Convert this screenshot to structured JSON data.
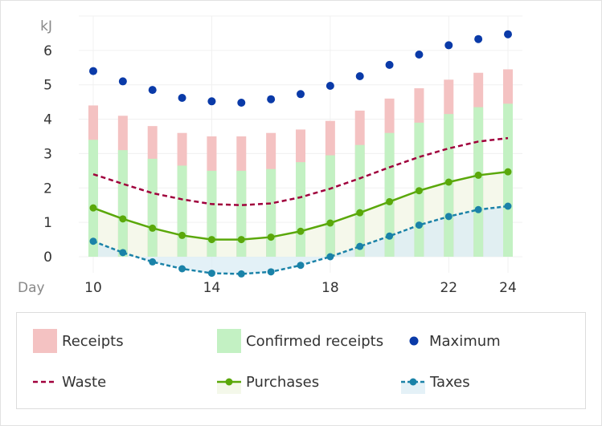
{
  "chart_data": {
    "type": "bar+line",
    "y_unit_label": "kJ",
    "x_axis_label": "Day",
    "x": [
      10,
      11,
      12,
      13,
      14,
      15,
      16,
      17,
      18,
      19,
      20,
      21,
      22,
      23,
      24
    ],
    "x_ticks": [
      10,
      14,
      18,
      22,
      24
    ],
    "y_ticks": [
      0,
      1,
      2,
      3,
      4,
      5,
      6
    ],
    "ylim": [
      -0.7,
      7.0
    ],
    "series": [
      {
        "name": "Receipts",
        "type": "bar",
        "color": "#f4c2c2",
        "values": [
          4.4,
          4.1,
          3.8,
          3.6,
          3.5,
          3.5,
          3.6,
          3.7,
          3.95,
          4.25,
          4.6,
          4.9,
          5.15,
          5.35,
          5.45
        ]
      },
      {
        "name": "Confirmed receipts",
        "type": "bar",
        "color": "#c3f1c3",
        "values": [
          3.4,
          3.1,
          2.85,
          2.65,
          2.5,
          2.5,
          2.55,
          2.75,
          2.95,
          3.25,
          3.6,
          3.9,
          4.15,
          4.35,
          4.45
        ]
      },
      {
        "name": "Maximum",
        "type": "scatter",
        "color": "#0a3aa8",
        "values": [
          5.4,
          5.1,
          4.85,
          4.62,
          4.52,
          4.48,
          4.58,
          4.73,
          4.97,
          5.25,
          5.58,
          5.88,
          6.15,
          6.33,
          6.47
        ]
      },
      {
        "name": "Waste",
        "type": "line",
        "style": "dashed",
        "color": "#a0003c",
        "values": [
          2.4,
          2.12,
          1.85,
          1.67,
          1.53,
          1.5,
          1.55,
          1.73,
          1.98,
          2.28,
          2.6,
          2.9,
          3.15,
          3.35,
          3.45
        ]
      },
      {
        "name": "Purchases",
        "type": "line",
        "style": "solid-area",
        "color": "#5aa80a",
        "values": [
          1.42,
          1.1,
          0.83,
          0.62,
          0.5,
          0.5,
          0.57,
          0.74,
          0.98,
          1.28,
          1.6,
          1.92,
          2.17,
          2.37,
          2.47
        ]
      },
      {
        "name": "Taxes",
        "type": "line",
        "style": "dashed-area",
        "color": "#1a82a8",
        "values": [
          0.45,
          0.12,
          -0.15,
          -0.35,
          -0.48,
          -0.5,
          -0.44,
          -0.25,
          0.0,
          0.3,
          0.6,
          0.92,
          1.17,
          1.37,
          1.47
        ]
      }
    ]
  }
}
